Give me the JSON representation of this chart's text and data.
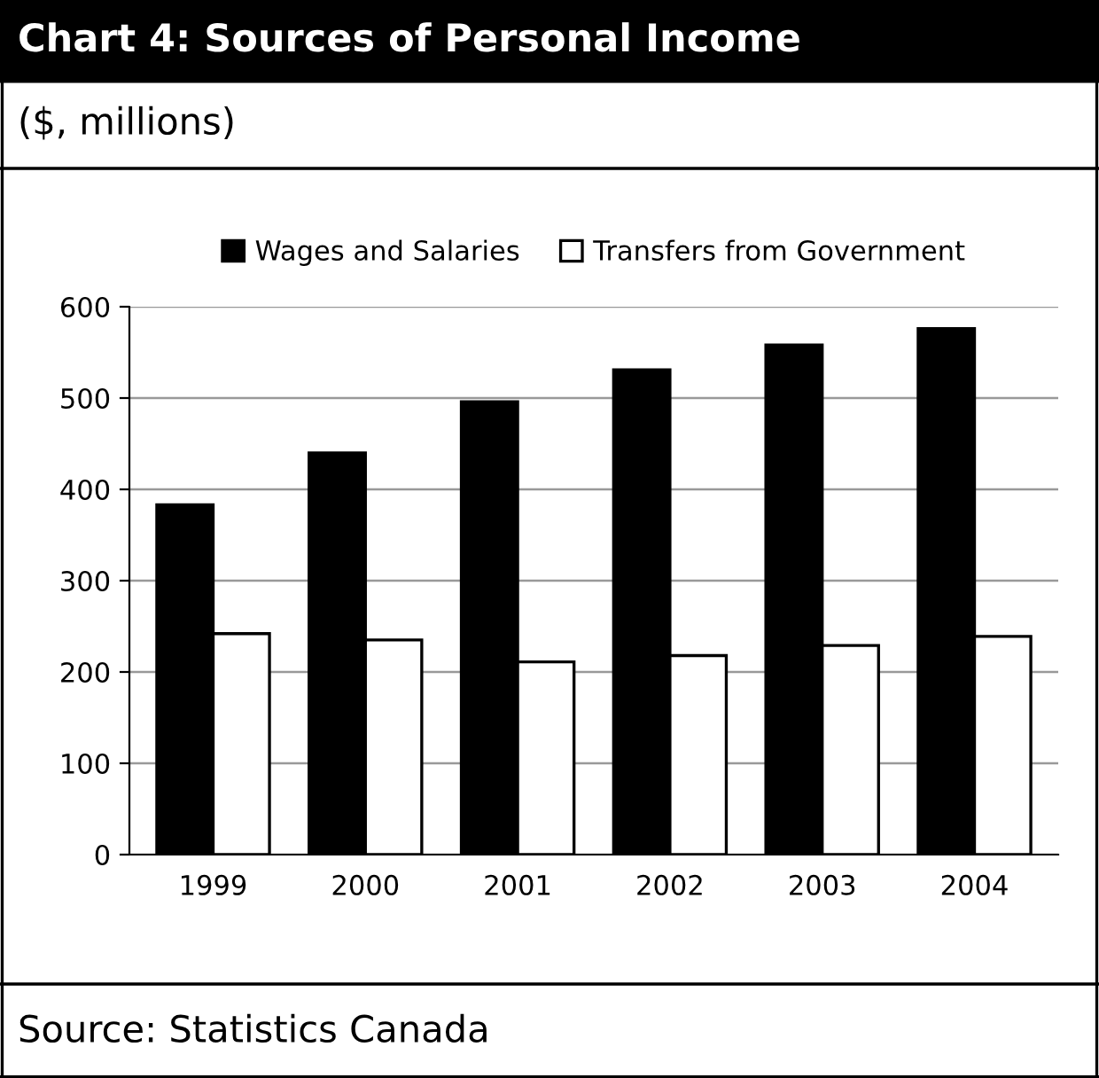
{
  "chart_data": {
    "type": "bar",
    "title": "Chart 4: Sources of Personal Income",
    "subtitle": "($, millions)",
    "categories": [
      "1999",
      "2000",
      "2001",
      "2002",
      "2003",
      "2004"
    ],
    "series": [
      {
        "name": "Wages and Salaries",
        "color": "#000000",
        "values": [
          383,
          440,
          496,
          531,
          558,
          576
        ]
      },
      {
        "name": "Transfers from Government",
        "color": "#ffffff",
        "values": [
          242,
          235,
          211,
          218,
          229,
          239
        ]
      }
    ],
    "ylim": [
      0,
      600
    ],
    "yticks": [
      0,
      100,
      200,
      300,
      400,
      500,
      600
    ],
    "grid": "y",
    "legend": "top",
    "annotations": [
      "Source: Statistics Canada"
    ]
  }
}
